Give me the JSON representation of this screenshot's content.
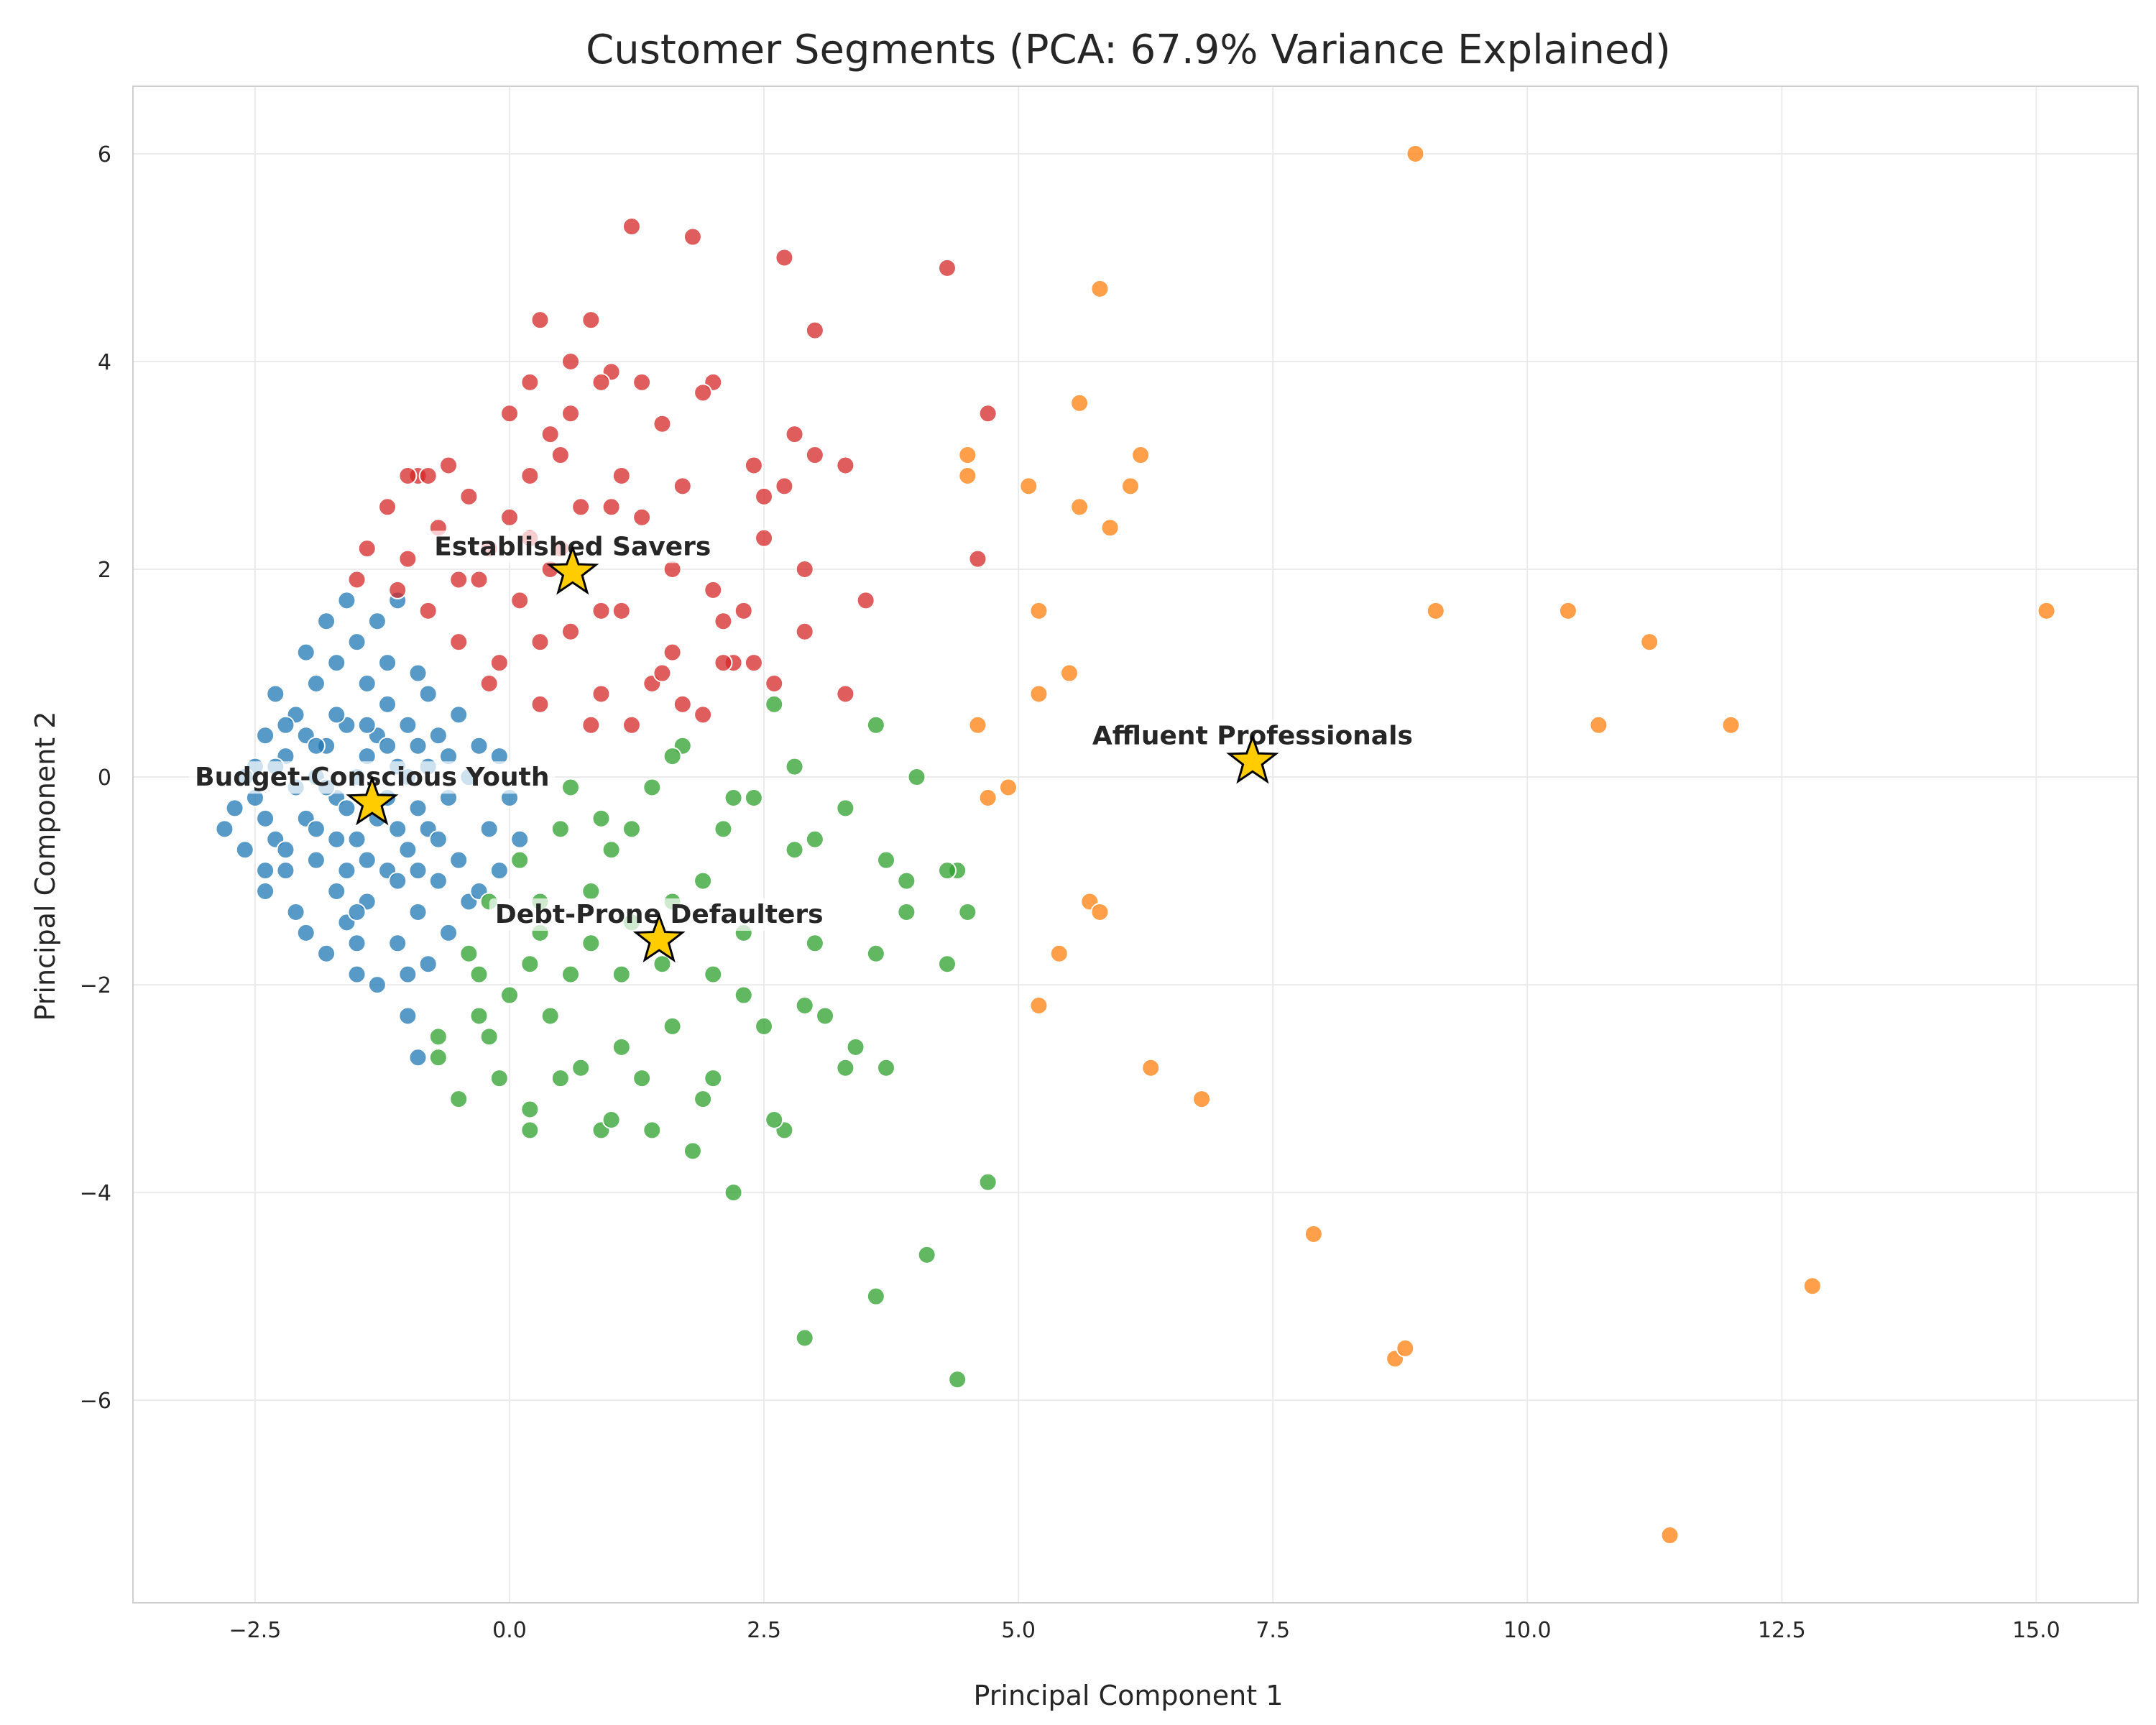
{
  "chart_data": {
    "type": "scatter",
    "title": "Customer Segments (PCA: 67.9% Variance Explained)",
    "xlabel": "Principal Component 1",
    "ylabel": "Principal Component 2",
    "xlim": [
      -3.7,
      16.0
    ],
    "ylim": [
      -7.95,
      6.65
    ],
    "xticks": [
      -2.5,
      0.0,
      2.5,
      5.0,
      7.5,
      10.0,
      12.5,
      15.0
    ],
    "xtick_labels": [
      "−2.5",
      "0.0",
      "2.5",
      "5.0",
      "7.5",
      "10.0",
      "12.5",
      "15.0"
    ],
    "yticks": [
      -6,
      -4,
      -2,
      0,
      2,
      4,
      6
    ],
    "ytick_labels": [
      "−6",
      "−4",
      "−2",
      "0",
      "2",
      "4",
      "6"
    ],
    "grid": true,
    "legend": "none",
    "series": [
      {
        "color": "#1f77b4",
        "points": [
          [
            -2.8,
            -0.5
          ],
          [
            -2.7,
            -0.3
          ],
          [
            -2.6,
            -0.7
          ],
          [
            -2.5,
            0.1
          ],
          [
            -2.5,
            -0.2
          ],
          [
            -2.4,
            -1.1
          ],
          [
            -2.4,
            0.4
          ],
          [
            -2.3,
            -0.6
          ],
          [
            -2.3,
            0.8
          ],
          [
            -2.2,
            -0.9
          ],
          [
            -2.2,
            0.2
          ],
          [
            -2.1,
            -1.3
          ],
          [
            -2.1,
            0.6
          ],
          [
            -2.0,
            -0.4
          ],
          [
            -2.0,
            1.2
          ],
          [
            -2.0,
            -1.5
          ],
          [
            -1.9,
            0.0
          ],
          [
            -1.9,
            0.9
          ],
          [
            -1.9,
            -0.8
          ],
          [
            -1.8,
            1.5
          ],
          [
            -1.8,
            -1.7
          ],
          [
            -1.8,
            0.3
          ],
          [
            -1.7,
            -1.1
          ],
          [
            -1.7,
            1.1
          ],
          [
            -1.7,
            -0.2
          ],
          [
            -1.6,
            1.7
          ],
          [
            -1.6,
            -1.4
          ],
          [
            -1.6,
            0.5
          ],
          [
            -1.5,
            -0.6
          ],
          [
            -1.5,
            1.3
          ],
          [
            -1.5,
            -1.9
          ],
          [
            -1.4,
            0.2
          ],
          [
            -1.4,
            0.9
          ],
          [
            -1.4,
            -1.2
          ],
          [
            -1.3,
            1.5
          ],
          [
            -1.3,
            -0.4
          ],
          [
            -1.3,
            -2.0
          ],
          [
            -1.2,
            0.7
          ],
          [
            -1.2,
            -0.9
          ],
          [
            -1.2,
            1.1
          ],
          [
            -1.1,
            -1.6
          ],
          [
            -1.1,
            0.1
          ],
          [
            -1.1,
            1.7
          ],
          [
            -1.0,
            -0.7
          ],
          [
            -1.0,
            0.5
          ],
          [
            -1.0,
            -2.3
          ],
          [
            -0.9,
            1.0
          ],
          [
            -0.9,
            -1.3
          ],
          [
            -0.9,
            0.3
          ],
          [
            -0.8,
            -0.5
          ],
          [
            -0.8,
            -1.8
          ],
          [
            -0.8,
            0.8
          ],
          [
            -0.7,
            -1.0
          ],
          [
            -0.7,
            0.4
          ],
          [
            -0.6,
            -0.2
          ],
          [
            -0.6,
            -1.5
          ],
          [
            -0.5,
            0.6
          ],
          [
            -0.5,
            -0.8
          ],
          [
            -0.4,
            0.0
          ],
          [
            -0.4,
            -1.2
          ],
          [
            -0.3,
            0.3
          ],
          [
            -0.2,
            -0.5
          ],
          [
            -0.1,
            -0.9
          ],
          [
            0.0,
            -0.2
          ],
          [
            0.1,
            -0.6
          ],
          [
            -2.6,
            0.0
          ],
          [
            -2.4,
            -0.4
          ],
          [
            -2.3,
            0.1
          ],
          [
            -2.2,
            -0.7
          ],
          [
            -2.1,
            -0.1
          ],
          [
            -2.0,
            0.4
          ],
          [
            -1.9,
            -0.5
          ],
          [
            -1.8,
            -0.1
          ],
          [
            -1.7,
            0.6
          ],
          [
            -1.6,
            -0.3
          ],
          [
            -1.5,
            0.0
          ],
          [
            -1.4,
            -0.8
          ],
          [
            -1.3,
            0.4
          ],
          [
            -1.2,
            -0.2
          ],
          [
            -1.1,
            -0.5
          ],
          [
            -1.0,
            0.0
          ],
          [
            -0.9,
            -0.3
          ],
          [
            -0.8,
            0.1
          ],
          [
            -0.7,
            -0.6
          ],
          [
            -0.6,
            0.2
          ],
          [
            -1.9,
            0.3
          ],
          [
            -1.6,
            -0.9
          ],
          [
            -1.4,
            0.5
          ],
          [
            -1.1,
            -1.0
          ],
          [
            -0.9,
            -0.9
          ],
          [
            -2.2,
            0.5
          ],
          [
            -1.7,
            -0.6
          ],
          [
            -1.2,
            0.3
          ],
          [
            -2.4,
            -0.9
          ],
          [
            -1.5,
            -1.3
          ],
          [
            -0.9,
            -2.7
          ],
          [
            -1.0,
            -1.9
          ],
          [
            -1.5,
            -1.6
          ],
          [
            -0.3,
            -1.1
          ],
          [
            -0.1,
            0.2
          ]
        ]
      },
      {
        "color": "#d62728",
        "points": [
          [
            -1.5,
            1.9
          ],
          [
            -1.4,
            2.2
          ],
          [
            -1.2,
            2.6
          ],
          [
            -1.1,
            1.8
          ],
          [
            -1.0,
            2.1
          ],
          [
            -0.9,
            2.9
          ],
          [
            -0.8,
            1.6
          ],
          [
            -0.7,
            2.4
          ],
          [
            -0.6,
            3.0
          ],
          [
            -0.5,
            1.3
          ],
          [
            -0.4,
            2.7
          ],
          [
            -0.3,
            1.9
          ],
          [
            -0.2,
            2.2
          ],
          [
            -0.1,
            1.1
          ],
          [
            0.0,
            3.5
          ],
          [
            0.1,
            1.7
          ],
          [
            0.2,
            2.3
          ],
          [
            0.3,
            4.4
          ],
          [
            0.4,
            2.0
          ],
          [
            0.5,
            3.1
          ],
          [
            0.6,
            1.4
          ],
          [
            0.7,
            2.6
          ],
          [
            0.8,
            4.4
          ],
          [
            0.9,
            0.8
          ],
          [
            1.0,
            3.9
          ],
          [
            1.1,
            1.6
          ],
          [
            1.2,
            5.3
          ],
          [
            1.3,
            2.5
          ],
          [
            1.4,
            0.9
          ],
          [
            1.5,
            3.4
          ],
          [
            1.6,
            1.2
          ],
          [
            1.7,
            2.8
          ],
          [
            1.8,
            5.2
          ],
          [
            1.9,
            0.6
          ],
          [
            2.0,
            3.8
          ],
          [
            2.1,
            1.5
          ],
          [
            2.2,
            1.1
          ],
          [
            2.3,
            1.6
          ],
          [
            2.4,
            3.0
          ],
          [
            2.5,
            2.3
          ],
          [
            2.6,
            0.9
          ],
          [
            2.7,
            5.0
          ],
          [
            2.8,
            3.3
          ],
          [
            2.9,
            2.0
          ],
          [
            3.0,
            4.3
          ],
          [
            3.0,
            3.1
          ],
          [
            3.3,
            3.0
          ],
          [
            3.5,
            1.7
          ],
          [
            3.3,
            0.8
          ],
          [
            4.3,
            4.9
          ],
          [
            4.7,
            3.5
          ],
          [
            4.6,
            2.1
          ],
          [
            0.2,
            3.8
          ],
          [
            0.4,
            3.3
          ],
          [
            0.6,
            4.0
          ],
          [
            0.9,
            3.8
          ],
          [
            1.3,
            3.8
          ],
          [
            1.9,
            3.7
          ],
          [
            -0.2,
            0.9
          ],
          [
            0.3,
            0.7
          ],
          [
            0.8,
            0.5
          ],
          [
            1.2,
            0.5
          ],
          [
            1.7,
            0.7
          ],
          [
            2.1,
            1.1
          ],
          [
            2.5,
            2.7
          ],
          [
            2.9,
            1.4
          ],
          [
            -0.8,
            2.9
          ],
          [
            0.2,
            2.9
          ],
          [
            0.6,
            3.5
          ],
          [
            1.0,
            2.6
          ],
          [
            1.5,
            1.0
          ],
          [
            2.0,
            1.8
          ],
          [
            2.7,
            2.8
          ],
          [
            -1.0,
            2.9
          ],
          [
            -0.5,
            1.9
          ],
          [
            0.0,
            2.5
          ],
          [
            0.5,
            2.2
          ],
          [
            1.1,
            2.9
          ],
          [
            1.6,
            2.0
          ],
          [
            2.4,
            1.1
          ],
          [
            0.3,
            1.3
          ],
          [
            0.9,
            1.6
          ]
        ]
      },
      {
        "color": "#2ca02c",
        "points": [
          [
            -0.7,
            -2.5
          ],
          [
            -0.5,
            -3.1
          ],
          [
            -0.4,
            -1.7
          ],
          [
            -0.3,
            -2.3
          ],
          [
            -0.2,
            -1.2
          ],
          [
            -0.1,
            -2.9
          ],
          [
            0.0,
            -2.1
          ],
          [
            0.1,
            -0.8
          ],
          [
            0.2,
            -3.4
          ],
          [
            0.3,
            -1.5
          ],
          [
            0.4,
            -2.3
          ],
          [
            0.5,
            -0.5
          ],
          [
            0.6,
            -1.9
          ],
          [
            0.7,
            -2.8
          ],
          [
            0.8,
            -1.1
          ],
          [
            0.9,
            -3.4
          ],
          [
            1.0,
            -0.7
          ],
          [
            1.1,
            -2.6
          ],
          [
            1.2,
            -1.4
          ],
          [
            1.3,
            -2.9
          ],
          [
            1.4,
            -0.1
          ],
          [
            1.5,
            -1.8
          ],
          [
            1.6,
            -2.4
          ],
          [
            1.7,
            0.3
          ],
          [
            1.8,
            -3.6
          ],
          [
            1.9,
            -1.0
          ],
          [
            2.0,
            -2.9
          ],
          [
            2.1,
            -0.5
          ],
          [
            2.2,
            -4.0
          ],
          [
            2.3,
            -1.5
          ],
          [
            2.4,
            -0.2
          ],
          [
            2.5,
            -2.4
          ],
          [
            2.6,
            0.7
          ],
          [
            2.7,
            -3.4
          ],
          [
            2.8,
            -0.7
          ],
          [
            2.9,
            -2.2
          ],
          [
            3.0,
            -1.6
          ],
          [
            3.1,
            -2.3
          ],
          [
            3.3,
            -0.3
          ],
          [
            3.4,
            -2.6
          ],
          [
            3.6,
            -1.7
          ],
          [
            3.6,
            0.5
          ],
          [
            3.7,
            -0.8
          ],
          [
            3.9,
            -1.0
          ],
          [
            4.0,
            0.0
          ],
          [
            4.3,
            -1.8
          ],
          [
            4.4,
            -0.9
          ],
          [
            4.5,
            -1.3
          ],
          [
            4.7,
            -3.9
          ],
          [
            4.1,
            -4.6
          ],
          [
            3.6,
            -5.0
          ],
          [
            2.9,
            -5.4
          ],
          [
            4.4,
            -5.8
          ],
          [
            3.3,
            -2.8
          ],
          [
            3.7,
            -2.8
          ],
          [
            2.6,
            -3.3
          ],
          [
            1.9,
            -3.1
          ],
          [
            0.5,
            -2.9
          ],
          [
            1.0,
            -3.3
          ],
          [
            1.4,
            -3.4
          ],
          [
            0.2,
            -3.2
          ],
          [
            1.2,
            -0.5
          ],
          [
            1.6,
            0.2
          ],
          [
            2.2,
            -0.2
          ],
          [
            2.8,
            0.1
          ],
          [
            3.0,
            -0.6
          ],
          [
            1.1,
            -1.9
          ],
          [
            0.6,
            -0.1
          ],
          [
            0.9,
            -0.4
          ],
          [
            0.3,
            -1.2
          ],
          [
            -0.3,
            -1.9
          ],
          [
            0.2,
            -1.8
          ],
          [
            0.8,
            -1.6
          ],
          [
            1.6,
            -1.2
          ],
          [
            2.0,
            -1.9
          ],
          [
            2.3,
            -2.1
          ],
          [
            3.9,
            -1.3
          ],
          [
            4.3,
            -0.9
          ],
          [
            -0.7,
            -2.7
          ],
          [
            -0.2,
            -2.5
          ]
        ]
      },
      {
        "color": "#ff7f0e",
        "points": [
          [
            8.9,
            6.0
          ],
          [
            5.8,
            4.7
          ],
          [
            5.6,
            3.6
          ],
          [
            6.2,
            3.1
          ],
          [
            6.1,
            2.8
          ],
          [
            5.1,
            2.8
          ],
          [
            5.6,
            2.6
          ],
          [
            5.9,
            2.4
          ],
          [
            4.5,
            3.1
          ],
          [
            4.5,
            2.9
          ],
          [
            5.2,
            1.6
          ],
          [
            5.5,
            1.0
          ],
          [
            5.2,
            0.8
          ],
          [
            4.6,
            0.5
          ],
          [
            9.1,
            1.6
          ],
          [
            10.4,
            1.6
          ],
          [
            11.2,
            1.3
          ],
          [
            10.7,
            0.5
          ],
          [
            12.0,
            0.5
          ],
          [
            15.1,
            1.6
          ],
          [
            4.7,
            -0.2
          ],
          [
            4.9,
            -0.1
          ],
          [
            5.7,
            -1.2
          ],
          [
            5.8,
            -1.3
          ],
          [
            5.4,
            -1.7
          ],
          [
            5.2,
            -2.2
          ],
          [
            6.3,
            -2.8
          ],
          [
            6.8,
            -3.1
          ],
          [
            7.9,
            -4.4
          ],
          [
            8.7,
            -5.6
          ],
          [
            8.8,
            -5.5
          ],
          [
            12.8,
            -4.9
          ],
          [
            11.4,
            -7.3
          ]
        ]
      }
    ],
    "centroids": [
      {
        "label": "Established Savers",
        "x": 0.62,
        "y": 1.97
      },
      {
        "label": "Affluent Professionals",
        "x": 7.3,
        "y": 0.15
      },
      {
        "label": "Budget-Conscious Youth",
        "x": -1.35,
        "y": -0.25
      },
      {
        "label": "Debt-Prone Defaulters",
        "x": 1.47,
        "y": -1.57
      }
    ],
    "centroid_color": "#ffcc00"
  }
}
